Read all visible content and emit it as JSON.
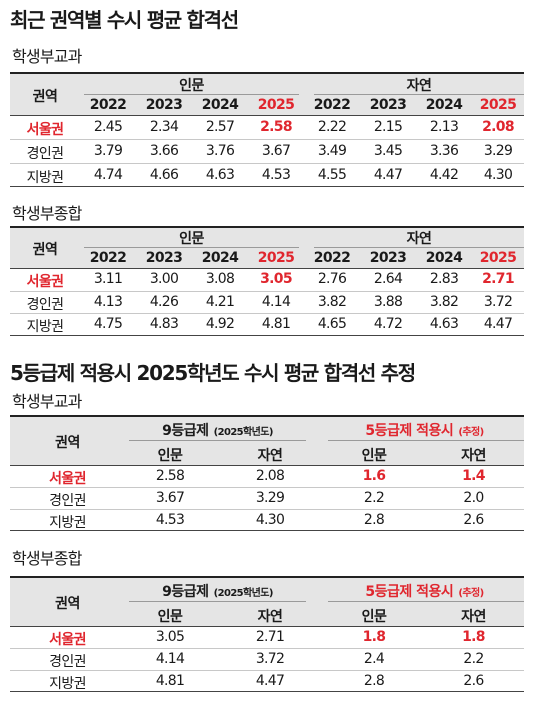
{
  "title_recent": "최근 권역별 수시 평균 합격선",
  "title_grade5": "5등급제 적용시 2025학년도 수시 평균 합격선 추정",
  "recent": {
    "region_header": "권역",
    "group_humanities": "인문",
    "group_natural": "자연",
    "years": [
      "2022",
      "2023",
      "2024",
      "2025",
      "2022",
      "2023",
      "2024",
      "2025"
    ],
    "gyogwa": {
      "label": "학생부교과",
      "rows": [
        {
          "region": "서울권",
          "values": [
            "2.45",
            "2.34",
            "2.57",
            "2.58",
            "2.22",
            "2.15",
            "2.13",
            "2.08"
          ]
        },
        {
          "region": "경인권",
          "values": [
            "3.79",
            "3.66",
            "3.76",
            "3.67",
            "3.49",
            "3.45",
            "3.36",
            "3.29"
          ]
        },
        {
          "region": "지방권",
          "values": [
            "4.74",
            "4.66",
            "4.63",
            "4.53",
            "4.55",
            "4.47",
            "4.42",
            "4.30"
          ]
        }
      ]
    },
    "jonghap": {
      "label": "학생부종합",
      "rows": [
        {
          "region": "서울권",
          "values": [
            "3.11",
            "3.00",
            "3.08",
            "3.05",
            "2.76",
            "2.64",
            "2.83",
            "2.71"
          ]
        },
        {
          "region": "경인권",
          "values": [
            "4.13",
            "4.26",
            "4.21",
            "4.14",
            "3.82",
            "3.88",
            "3.82",
            "3.72"
          ]
        },
        {
          "region": "지방권",
          "values": [
            "4.75",
            "4.83",
            "4.92",
            "4.81",
            "4.65",
            "4.72",
            "4.63",
            "4.47"
          ]
        }
      ]
    }
  },
  "grade5": {
    "region_header": "권역",
    "group_9": "9등급제",
    "group_9_note": "(2025학년도)",
    "group_5": "5등급제 적용시",
    "group_5_note": "(추정)",
    "cols": [
      "인문",
      "자연",
      "인문",
      "자연"
    ],
    "gyogwa": {
      "label": "학생부교과",
      "rows": [
        {
          "region": "서울권",
          "values": [
            "2.58",
            "2.08",
            "1.6",
            "1.4"
          ]
        },
        {
          "region": "경인권",
          "values": [
            "3.67",
            "3.29",
            "2.2",
            "2.0"
          ]
        },
        {
          "region": "지방권",
          "values": [
            "4.53",
            "4.30",
            "2.8",
            "2.6"
          ]
        }
      ]
    },
    "jonghap": {
      "label": "학생부종합",
      "rows": [
        {
          "region": "서울권",
          "values": [
            "3.05",
            "2.71",
            "1.8",
            "1.8"
          ]
        },
        {
          "region": "경인권",
          "values": [
            "4.14",
            "3.72",
            "2.4",
            "2.2"
          ]
        },
        {
          "region": "지방권",
          "values": [
            "4.81",
            "4.47",
            "2.8",
            "2.6"
          ]
        }
      ]
    }
  },
  "colors": {
    "highlight": "#e0262e",
    "header_bg": "#e5e5e5"
  }
}
